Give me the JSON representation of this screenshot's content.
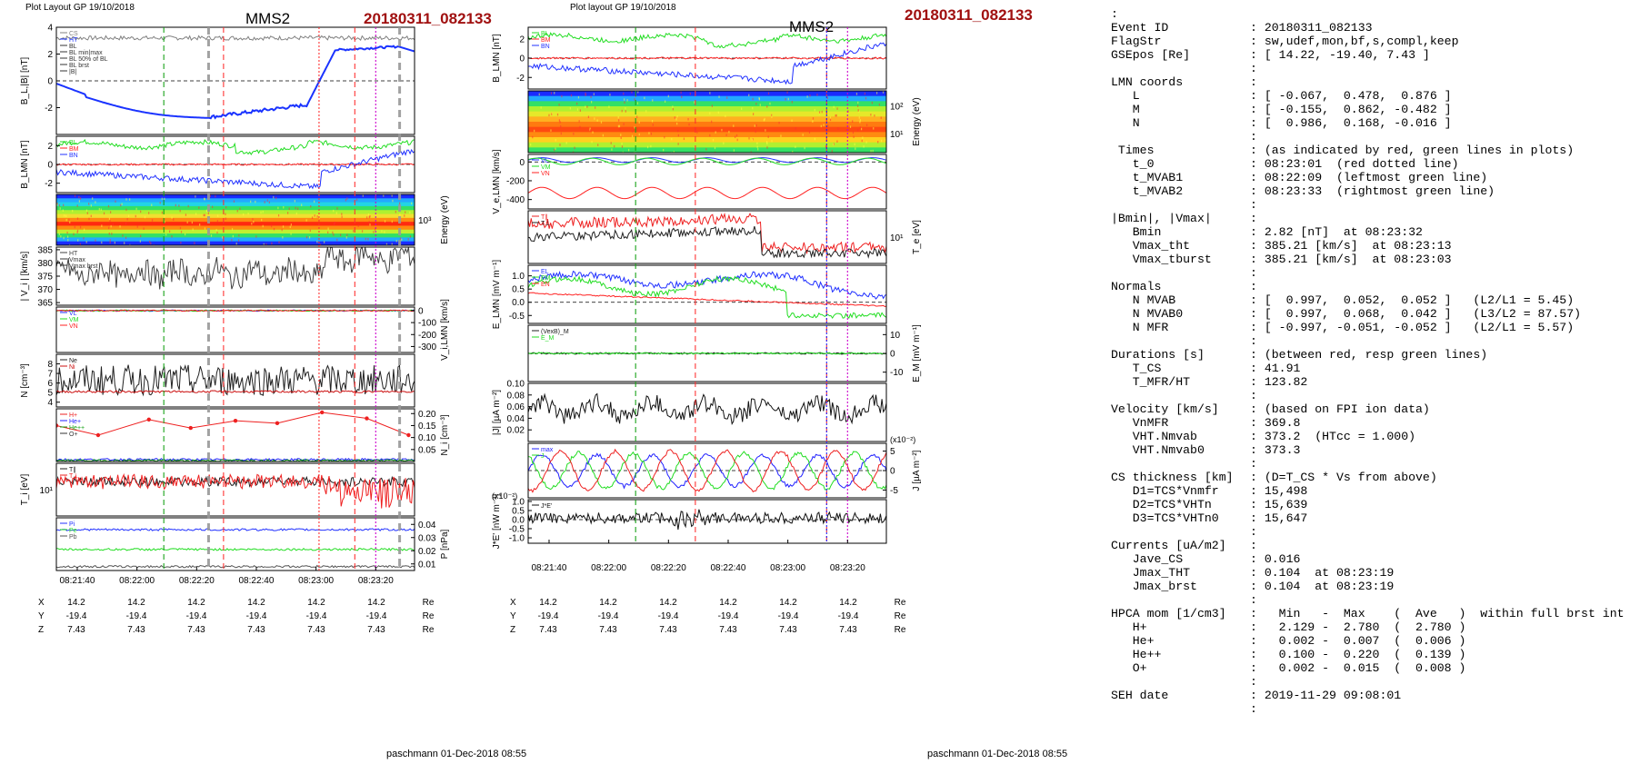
{
  "left_panel": {
    "layout_header": "Plot Layout GP 19/10/2018",
    "spacecraft": "MMS2",
    "event": "20180311_082133",
    "footer": "paschmann 01-Dec-2018 08:55",
    "position_rows": [
      {
        "label": "X",
        "values": [
          "14.2",
          "14.2",
          "14.2",
          "14.2",
          "14.2",
          "14.2"
        ],
        "unit": "Re"
      },
      {
        "label": "Y",
        "values": [
          "-19.4",
          "-19.4",
          "-19.4",
          "-19.4",
          "-19.4",
          "-19.4"
        ],
        "unit": "Re"
      },
      {
        "label": "Z",
        "values": [
          "7.43",
          "7.43",
          "7.43",
          "7.43",
          "7.43",
          "7.43"
        ],
        "unit": "Re"
      }
    ]
  },
  "right_panel": {
    "layout_header": "Plot layout GP 19/10/2018",
    "spacecraft": "MMS2",
    "event": "20180311_082133",
    "footer": "paschmann 01-Dec-2018 08:55",
    "position_rows": [
      {
        "label": "X",
        "values": [
          "14.2",
          "14.2",
          "14.2",
          "14.2",
          "14.2",
          "14.2"
        ],
        "unit": "Re"
      },
      {
        "label": "Y",
        "values": [
          "-19.4",
          "-19.4",
          "-19.4",
          "-19.4",
          "-19.4",
          "-19.4"
        ],
        "unit": "Re"
      },
      {
        "label": "Z",
        "values": [
          "7.43",
          "7.43",
          "7.43",
          "7.43",
          "7.43",
          "7.43"
        ],
        "unit": "Re"
      }
    ]
  },
  "chart_data": [
    {
      "type": "line",
      "figure": "left",
      "time_ticks": [
        "08:21:40",
        "08:22:00",
        "08:22:20",
        "08:22:40",
        "08:23:00",
        "08:23:20"
      ],
      "time_range": [
        "08:21:33",
        "08:23:33"
      ],
      "event_lines": [
        {
          "time": "08:22:09",
          "color": "#16a116",
          "style": "dashed"
        },
        {
          "time": "08:22:24",
          "color": "#999999",
          "style": "dashed-thick"
        },
        {
          "time": "08:22:29",
          "color": "#ff3030",
          "style": "dashed"
        },
        {
          "time": "08:23:01",
          "color": "#ff3030",
          "style": "dotted"
        },
        {
          "time": "08:23:13",
          "color": "#ff3030",
          "style": "dashed"
        },
        {
          "time": "08:23:20",
          "color": "#cc00cc",
          "style": "dotted"
        },
        {
          "time": "08:23:28",
          "color": "#999999",
          "style": "dashed-thick"
        }
      ],
      "panels": [
        {
          "ylabel": "B_L,|B| [nT]",
          "ylim": [
            -4,
            4
          ],
          "yticks": [
            "4",
            "2",
            "0",
            "-2"
          ],
          "side": "left",
          "legend": [
            "CS",
            "HT",
            "BL",
            "BL min|max",
            "BL 50% of BL",
            "BL brst",
            "|B|"
          ],
          "series": [
            {
              "name": "|B|",
              "color": "#808080",
              "shape": "flat-3.2"
            },
            {
              "name": "BL",
              "color": "#1a33ff",
              "shape": "bl"
            }
          ]
        },
        {
          "ylabel": "B_LMN [nT]",
          "ylim": [
            -3,
            3
          ],
          "yticks": [
            "2",
            "0",
            "-2"
          ],
          "side": "left",
          "legend": [
            "BL",
            "BM",
            "BN"
          ],
          "series": [
            {
              "name": "BL",
              "color": "#22dd22",
              "shape": "mid-high"
            },
            {
              "name": "BM",
              "color": "#ff2020",
              "shape": "zero"
            },
            {
              "name": "BN",
              "color": "#2030ff",
              "shape": "neg"
            }
          ]
        },
        {
          "ylabel": "Energy (eV)",
          "ytick_right": "10³",
          "side": "right",
          "kind": "spectrogram",
          "variant": "ion"
        },
        {
          "ylabel": "| V_i | [km/s]",
          "ylim": [
            364,
            386
          ],
          "yticks": [
            "385",
            "380",
            "375",
            "370",
            "365"
          ],
          "side": "left",
          "legend": [
            "HT",
            "Vmax",
            "Vmax brst"
          ],
          "series": [
            {
              "name": "|Vi|",
              "color": "#404040",
              "shape": "vnoise"
            }
          ]
        },
        {
          "ylabel": "V_i,LMN [km/s]",
          "ylim": [
            -350,
            30
          ],
          "yticks": [
            "0",
            "-100",
            "-200",
            "-300"
          ],
          "side": "right",
          "legend": [
            "VL",
            "VM",
            "VN"
          ],
          "series": [
            {
              "name": "VL",
              "color": "#2030ff",
              "shape": "zero"
            },
            {
              "name": "VM",
              "color": "#22dd22",
              "shape": "zero"
            },
            {
              "name": "VN",
              "color": "#ff2020",
              "shape": "zero"
            }
          ]
        },
        {
          "ylabel": "N [cm⁻³]",
          "ylim": [
            3.5,
            9
          ],
          "yticks": [
            "8",
            "7",
            "6",
            "5",
            "4"
          ],
          "side": "left",
          "legend": [
            "Ne",
            "Ni"
          ],
          "series": [
            {
              "name": "Ni",
              "color": "#202020",
              "shape": "nnoise"
            },
            {
              "name": "Ne",
              "color": "#cc1010",
              "shape": "flat-5.1"
            }
          ]
        },
        {
          "ylabel": "N_i [cm⁻³]",
          "ylim": [
            0,
            0.22
          ],
          "yticks": [
            "0.20",
            "0.15",
            "0.10",
            "0.05"
          ],
          "side": "right",
          "legend": [
            "H+",
            "He+",
            "He++",
            "O+"
          ],
          "series": [
            {
              "name": "He++",
              "color": "#ee2020",
              "times": [
                "08:21:33",
                "08:21:47",
                "08:22:04",
                "08:22:18",
                "08:22:33",
                "08:22:47",
                "08:23:02",
                "08:23:17",
                "08:23:31"
              ],
              "values": [
                0.15,
                0.11,
                0.175,
                0.14,
                0.17,
                0.16,
                0.205,
                0.18,
                0.11
              ]
            },
            {
              "name": "O+",
              "color": "#2020ff",
              "shape": "flat-0.008"
            },
            {
              "name": "H+",
              "color": "#16a116",
              "shape": "flat-0.004"
            }
          ]
        },
        {
          "ylabel": "T_i [eV]",
          "ytick_left": "10¹",
          "side": "left",
          "legend": [
            "T∥",
            "T⊥"
          ],
          "series": [
            {
              "name": "T_i",
              "color": "#202020",
              "shape": "tflat"
            },
            {
              "name": "T_i red",
              "color": "#ee2020",
              "shape": "tred"
            }
          ]
        },
        {
          "ylabel": "P [nPa]",
          "ylim": [
            0.005,
            0.045
          ],
          "yticks": [
            "0.04",
            "0.03",
            "0.02",
            "0.01"
          ],
          "side": "right",
          "legend": [
            "Pi",
            "Pe",
            "Pb"
          ],
          "series": [
            {
              "name": "P1",
              "color": "#2030ff",
              "shape": "flat-0.036"
            },
            {
              "name": "P2",
              "color": "#22dd22",
              "shape": "flat-0.021"
            },
            {
              "name": "P3",
              "color": "#555555",
              "shape": "flat-0.008"
            }
          ]
        }
      ]
    },
    {
      "type": "line",
      "figure": "right",
      "time_ticks": [
        "08:21:40",
        "08:22:00",
        "08:22:20",
        "08:22:40",
        "08:23:00",
        "08:23:20"
      ],
      "time_range": [
        "08:21:33",
        "08:23:33"
      ],
      "event_lines": [
        {
          "time": "08:22:09",
          "color": "#16a116",
          "style": "dashed"
        },
        {
          "time": "08:22:29",
          "color": "#ff3030",
          "style": "dashed"
        },
        {
          "time": "08:23:13",
          "color": "#ff3030",
          "style": "dashed"
        },
        {
          "time": "08:23:20",
          "color": "#cc00cc",
          "style": "dotted"
        },
        {
          "time": "08:23:13",
          "color": "#2020ff",
          "style": "dotted"
        }
      ],
      "panels": [
        {
          "ylabel": "B_LMN [nT]",
          "ylim": [
            -3.2,
            3.2
          ],
          "yticks": [
            "2",
            "0",
            "-2"
          ],
          "side": "left",
          "legend": [
            "BL",
            "BM",
            "BN"
          ],
          "series": [
            {
              "name": "BL",
              "color": "#22dd22",
              "shape": "mid-high"
            },
            {
              "name": "BM",
              "color": "#ff2020",
              "shape": "zero"
            },
            {
              "name": "BN",
              "color": "#2030ff",
              "shape": "neg"
            }
          ]
        },
        {
          "ylabel": "Energy (eV)",
          "yticks_right": [
            "10²",
            "10¹"
          ],
          "side": "right",
          "kind": "spectrogram",
          "variant": "electron"
        },
        {
          "ylabel": "V_e,LMN [km/s]",
          "ylim": [
            -500,
            80
          ],
          "yticks": [
            "0",
            "-200",
            "-400"
          ],
          "side": "left",
          "legend": [
            "VL",
            "VM",
            "VN"
          ],
          "series": [
            {
              "name": "VL",
              "color": "#2030ff",
              "shape": "sineA"
            },
            {
              "name": "VM",
              "color": "#22dd22",
              "shape": "sineB"
            },
            {
              "name": "VN",
              "color": "#ff2020",
              "shape": "sineN"
            }
          ]
        },
        {
          "ylabel": "T_e [eV]",
          "ytick_right": "10¹",
          "side": "right",
          "legend": [
            "T∥",
            "T⊥"
          ],
          "series": [
            {
              "name": "T∥",
              "color": "#ee2020",
              "shape": "teR"
            },
            {
              "name": "T⊥",
              "color": "#202020",
              "shape": "teK"
            }
          ]
        },
        {
          "ylabel": "E_LMN [mV m⁻¹]",
          "ylim": [
            -0.8,
            1.4
          ],
          "yticks": [
            "1.0",
            "0.5",
            "0.0",
            "-0.5"
          ],
          "side": "left",
          "legend": [
            "EL",
            "EM",
            "EN"
          ],
          "series": [
            {
              "name": "EL",
              "color": "#2030ff",
              "shape": "eB"
            },
            {
              "name": "EM",
              "color": "#22dd22",
              "shape": "eG"
            },
            {
              "name": "EN",
              "color": "#ff2020",
              "shape": "eR"
            }
          ]
        },
        {
          "ylabel": "E_M [mV m⁻¹]",
          "ylim": [
            -15,
            15
          ],
          "yticks": [
            "10",
            "0",
            "-10"
          ],
          "side": "right",
          "legend": [
            "(VexB)_M",
            "E_M"
          ],
          "series": [
            {
              "name": "(VexB)M",
              "color": "#202020",
              "shape": "zero"
            },
            {
              "name": "EM",
              "color": "#22dd22",
              "shape": "zero"
            }
          ]
        },
        {
          "ylabel": "|J| [µA m⁻²]",
          "ylim": [
            0,
            0.1
          ],
          "yticks": [
            "0.10",
            "0.08",
            "0.06",
            "0.04",
            "0.02"
          ],
          "side": "left",
          "series": [
            {
              "name": "|J|",
              "color": "#111111",
              "shape": "jnoise"
            }
          ]
        },
        {
          "ylabel": "J [µA m⁻²]",
          "ylim": [
            -7,
            7
          ],
          "yticks": [
            "5",
            "0",
            "-5"
          ],
          "side": "right",
          "multiplier": "(x10⁻²)",
          "legend": [
            "max",
            "J"
          ],
          "series": [
            {
              "name": "JN",
              "color": "#2020ff",
              "shape": "sinJ1"
            },
            {
              "name": "JM",
              "color": "#22dd22",
              "shape": "sinJ2"
            },
            {
              "name": "JL",
              "color": "#ee2020",
              "shape": "sinJ3"
            }
          ]
        },
        {
          "ylabel": "J*E' [nW m⁻³]",
          "ylim": [
            -1.3,
            1.1
          ],
          "yticks": [
            "1.0",
            "0.5",
            "0.0",
            "-0.5",
            "-1.0"
          ],
          "side": "left",
          "multiplier": "(x10⁻²)",
          "legend": [
            "J*E'"
          ],
          "series": [
            {
              "name": "J*E'",
              "color": "#111111",
              "shape": "jenoise"
            }
          ]
        }
      ]
    }
  ],
  "summary": [
    {
      "label": ":",
      "value": ""
    },
    {
      "label": "Event ID",
      "value": ": 20180311_082133"
    },
    {
      "label": "FlagStr",
      "value": ": sw,udef,mon,bf,s,compl,keep"
    },
    {
      "label": "GSEpos [Re]",
      "value": ": [ 14.22, -19.40, 7.43 ]"
    },
    {
      "label": "",
      "value": ":"
    },
    {
      "label": "LMN coords",
      "value": ":"
    },
    {
      "label": "   L",
      "value": ": [ -0.067,  0.478,  0.876 ]"
    },
    {
      "label": "   M",
      "value": ": [ -0.155,  0.862, -0.482 ]"
    },
    {
      "label": "   N",
      "value": ": [  0.986,  0.168, -0.016 ]"
    },
    {
      "label": "",
      "value": ":"
    },
    {
      "label": " Times",
      "value": ": (as indicated by red, green lines in plots)"
    },
    {
      "label": "   t_0",
      "value": ": 08:23:01  (red dotted line)"
    },
    {
      "label": "   t_MVAB1",
      "value": ": 08:22:09  (leftmost green line)"
    },
    {
      "label": "   t_MVAB2",
      "value": ": 08:23:33  (rightmost green line)"
    },
    {
      "label": "",
      "value": ":"
    },
    {
      "label": "|Bmin|, |Vmax|",
      "value": ":"
    },
    {
      "label": "   Bmin",
      "value": ": 2.82 [nT]  at 08:23:32"
    },
    {
      "label": "   Vmax_tht",
      "value": ": 385.21 [km/s]  at 08:23:13"
    },
    {
      "label": "   Vmax_tburst",
      "value": ": 385.21 [km/s]  at 08:23:03"
    },
    {
      "label": "",
      "value": ":"
    },
    {
      "label": "Normals",
      "value": ":"
    },
    {
      "label": "   N MVAB",
      "value": ": [  0.997,  0.052,  0.052 ]   (L2/L1 = 5.45)"
    },
    {
      "label": "   N MVAB0",
      "value": ": [  0.997,  0.068,  0.042 ]   (L3/L2 = 87.57)"
    },
    {
      "label": "   N MFR",
      "value": ": [ -0.997, -0.051, -0.052 ]   (L2/L1 = 5.57)"
    },
    {
      "label": "",
      "value": ":"
    },
    {
      "label": "Durations [s]",
      "value": ": (between red, resp green lines)"
    },
    {
      "label": "   T_CS",
      "value": ": 41.91"
    },
    {
      "label": "   T_MFR/HT",
      "value": ": 123.82"
    },
    {
      "label": "",
      "value": ":"
    },
    {
      "label": "Velocity [km/s]",
      "value": ": (based on FPI ion data)"
    },
    {
      "label": "   VnMFR",
      "value": ": 369.8"
    },
    {
      "label": "   VHT.Nmvab",
      "value": ": 373.2  (HTcc = 1.000)"
    },
    {
      "label": "   VHT.Nmvab0",
      "value": ": 373.3"
    },
    {
      "label": "",
      "value": ":"
    },
    {
      "label": "CS thickness [km]",
      "value": ": (D=T_CS * Vs from above)"
    },
    {
      "label": "   D1=TCS*Vnmfr",
      "value": ": 15,498"
    },
    {
      "label": "   D2=TCS*VHTn",
      "value": ": 15,639"
    },
    {
      "label": "   D3=TCS*VHTn0",
      "value": ": 15,647"
    },
    {
      "label": "",
      "value": ":"
    },
    {
      "label": "Currents [uA/m2]",
      "value": ":"
    },
    {
      "label": "   Jave_CS",
      "value": ": 0.016"
    },
    {
      "label": "   Jmax_THT",
      "value": ": 0.104  at 08:23:19"
    },
    {
      "label": "   Jmax_brst",
      "value": ": 0.104  at 08:23:19"
    },
    {
      "label": "",
      "value": ":"
    },
    {
      "label": "HPCA mom [1/cm3]",
      "value": ":   Min   -  Max    (  Ave   )  within full brst int"
    },
    {
      "label": "   H+",
      "value": ":   2.129 -  2.780  (  2.780 )"
    },
    {
      "label": "   He+",
      "value": ":   0.002 -  0.007  (  0.006 )"
    },
    {
      "label": "   He++",
      "value": ":   0.100 -  0.220  (  0.139 )"
    },
    {
      "label": "   O+",
      "value": ":   0.002 -  0.015  (  0.008 )"
    },
    {
      "label": "",
      "value": ":"
    },
    {
      "label": "SEH date",
      "value": ": 2019-11-29 09:08:01"
    },
    {
      "label": "",
      "value": ":"
    }
  ]
}
